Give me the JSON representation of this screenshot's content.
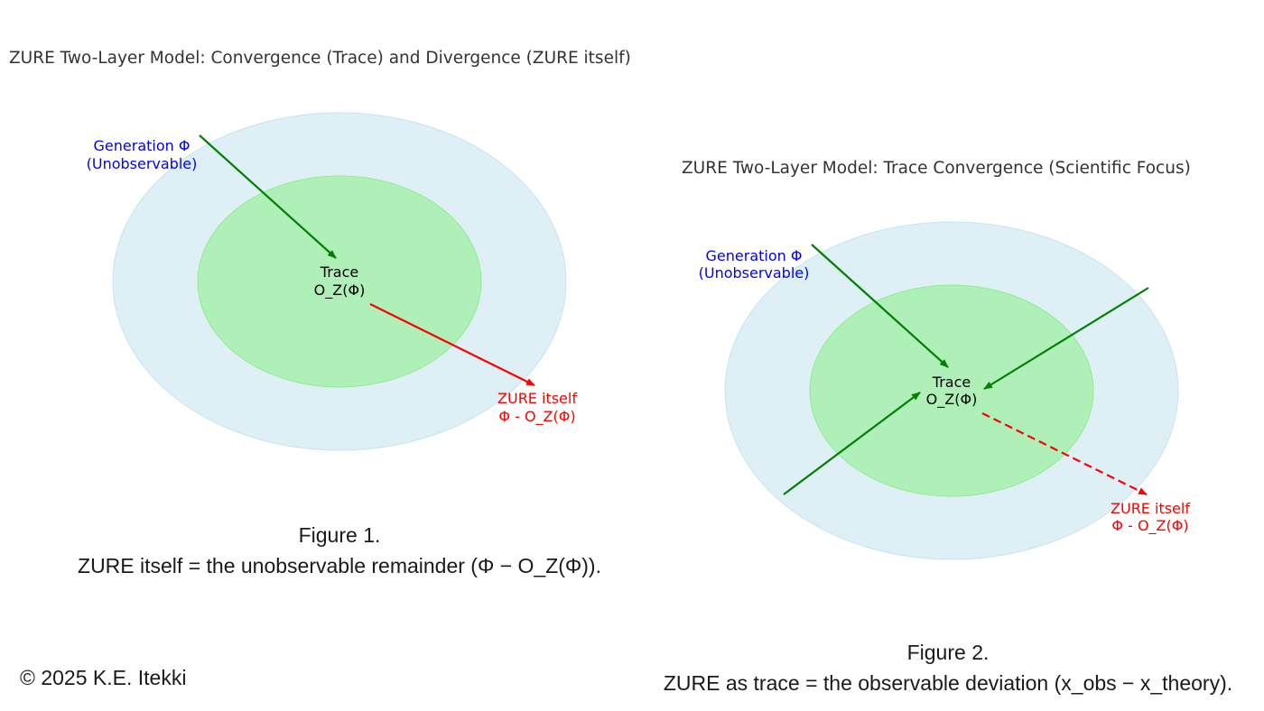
{
  "figure1": {
    "title": "ZURE Two-Layer Model: Convergence (Trace) and Divergence (ZURE itself)",
    "generation_line1": "Generation Φ",
    "generation_line2": "(Unobservable)",
    "trace_line1": "Trace",
    "trace_line2": "O_Z(Φ)",
    "zure_line1": "ZURE itself",
    "zure_line2": "Φ - O_Z(Φ)",
    "caption_line1": "Figure 1.",
    "caption_line2": "ZURE itself = the unobservable remainder (Φ − O_Z(Φ))."
  },
  "figure2": {
    "title": "ZURE Two-Layer Model: Trace Convergence (Scientific Focus)",
    "generation_line1": "Generation Φ",
    "generation_line2": "(Unobservable)",
    "trace_line1": "Trace",
    "trace_line2": "O_Z(Φ)",
    "zure_line1": "ZURE itself",
    "zure_line2": "Φ - O_Z(Φ)",
    "caption_line1": "Figure 2.",
    "caption_line2": "ZURE as trace = the observable deviation (x_obs − x_theory)."
  },
  "copyright": "© 2025 K.E. Itekki",
  "colors": {
    "outer_layer": "#add8e6",
    "inner_layer": "#90ee90",
    "convergence_arrow": "#008000",
    "divergence_arrow": "#ff0000",
    "generation_label": "#0000ff",
    "zure_label": "#ff0000"
  }
}
